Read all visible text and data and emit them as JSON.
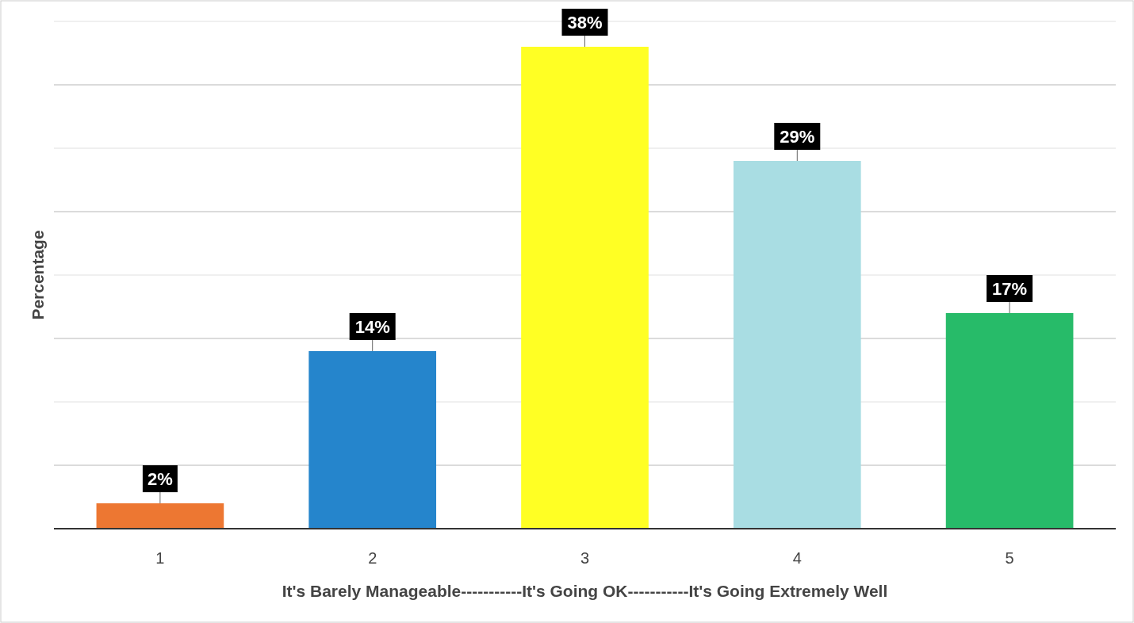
{
  "chart_data": {
    "type": "bar",
    "xlabel": "It's Barely Manageable-----------It's Going OK-----------It's Going Extremely Well",
    "ylabel": "Percentage",
    "categories": [
      "1",
      "2",
      "3",
      "4",
      "5"
    ],
    "values": [
      2,
      14,
      38,
      29,
      17
    ],
    "colors": [
      "#ed7732",
      "#2585cc",
      "#ffff24",
      "#a9dde3",
      "#27bb69"
    ],
    "value_labels": [
      "2%",
      "14%",
      "38%",
      "29%",
      "17%"
    ],
    "ylim": [
      0,
      40
    ],
    "yticks": [
      {
        "value": 0,
        "label": null
      },
      {
        "value": 5,
        "label": null
      },
      {
        "value": 10,
        "label": null
      },
      {
        "value": 15,
        "label": null
      },
      {
        "value": 20,
        "label": null
      },
      {
        "value": 25,
        "label": null
      },
      {
        "value": 30,
        "label": null
      },
      {
        "value": 35,
        "label": null
      },
      {
        "value": 40,
        "label": null
      }
    ],
    "grid": "y",
    "tick_labels": "x"
  }
}
